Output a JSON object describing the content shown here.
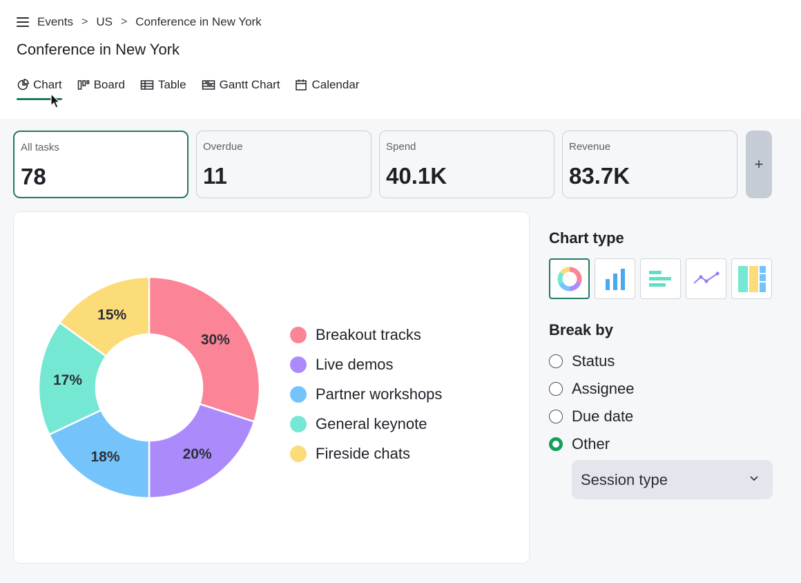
{
  "breadcrumb": {
    "items": [
      "Events",
      "US",
      "Conference in New York"
    ],
    "separator": ">"
  },
  "page": {
    "title": "Conference in New York"
  },
  "tabs": [
    {
      "label": "Chart",
      "icon": "pie-chart-icon",
      "active": true
    },
    {
      "label": "Board",
      "icon": "board-icon",
      "active": false
    },
    {
      "label": "Table",
      "icon": "table-icon",
      "active": false
    },
    {
      "label": "Gantt Chart",
      "icon": "gantt-icon",
      "active": false
    },
    {
      "label": "Calendar",
      "icon": "calendar-icon",
      "active": false
    }
  ],
  "stats": [
    {
      "label": "All tasks",
      "value": "78",
      "active": true
    },
    {
      "label": "Overdue",
      "value": "11",
      "active": false
    },
    {
      "label": "Spend",
      "value": "40.1K",
      "active": false
    },
    {
      "label": "Revenue",
      "value": "83.7K",
      "active": false
    }
  ],
  "add_stat_label": "+",
  "chart_data": {
    "type": "pie",
    "donut": true,
    "categories": [
      "Breakout tracks",
      "Live demos",
      "Partner workshops",
      "General keynote",
      "Fireside chats"
    ],
    "values": [
      30,
      20,
      18,
      17,
      15
    ],
    "value_labels": [
      "30%",
      "20%",
      "18%",
      "17%",
      "15%"
    ],
    "colors": [
      "#fb8497",
      "#ab8bfb",
      "#74c3fb",
      "#74e8d3",
      "#fcdb79"
    ],
    "legend_position": "right"
  },
  "sidebar": {
    "chart_type_title": "Chart type",
    "chart_types": [
      {
        "icon": "donut-chart-icon",
        "active": true
      },
      {
        "icon": "bar-chart-icon",
        "active": false
      },
      {
        "icon": "horizontal-bar-chart-icon",
        "active": false
      },
      {
        "icon": "line-chart-icon",
        "active": false
      },
      {
        "icon": "treemap-icon",
        "active": false
      }
    ],
    "break_by_title": "Break by",
    "break_by_options": [
      {
        "label": "Status",
        "checked": false
      },
      {
        "label": "Assignee",
        "checked": false
      },
      {
        "label": "Due date",
        "checked": false
      },
      {
        "label": "Other",
        "checked": true
      }
    ],
    "other_select_value": "Session type"
  },
  "colors": {
    "accent": "#1f7a62",
    "radio_checked": "#12a15a"
  }
}
